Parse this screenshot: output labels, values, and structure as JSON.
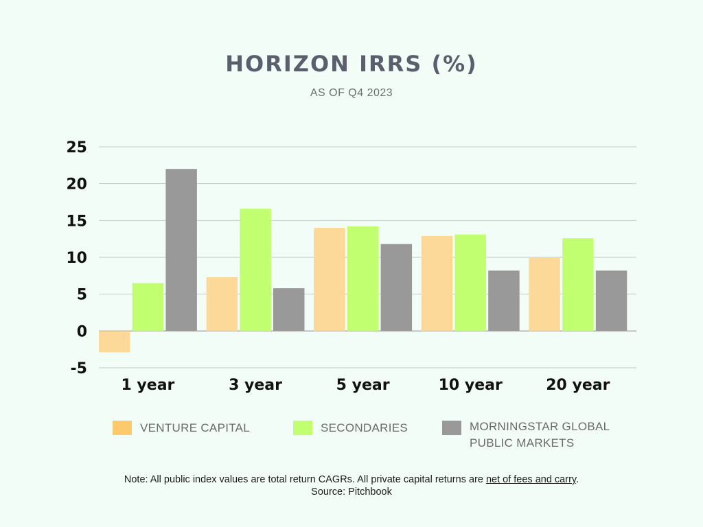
{
  "title": "HORIZON IRRS (%)",
  "subtitle": "AS OF Q4 2023",
  "chart_data": {
    "type": "bar",
    "categories": [
      "1 year",
      "3 year",
      "5 year",
      "10 year",
      "20 year"
    ],
    "series": [
      {
        "name": "VENTURE CAPITAL",
        "color": "#fdd999",
        "values": [
          -2.9,
          7.3,
          14.0,
          12.9,
          10.0
        ]
      },
      {
        "name": "SECONDARIES",
        "color": "#c2ff70",
        "values": [
          6.5,
          16.6,
          14.2,
          13.1,
          12.6
        ]
      },
      {
        "name": "MORNINGSTAR GLOBAL PUBLIC MARKETS",
        "color": "#999999",
        "values": [
          22.0,
          5.8,
          11.8,
          8.2,
          8.2
        ]
      }
    ],
    "ylim": [
      -5,
      25
    ],
    "yticks": [
      -5,
      0,
      5,
      10,
      15,
      20,
      25
    ],
    "ytick_labels": [
      "-5",
      "0",
      "5",
      "10",
      "15",
      "20",
      "25"
    ],
    "grid": true,
    "legend_position": "bottom"
  },
  "legend": [
    {
      "line1": "VENTURE CAPITAL",
      "line2": "",
      "color": "#fdc96a"
    },
    {
      "line1": "SECONDARIES",
      "line2": "",
      "color": "#c2ff70"
    },
    {
      "line1": "MORNINGSTAR GLOBAL",
      "line2": "PUBLIC MARKETS",
      "color": "#999999"
    }
  ],
  "note": {
    "prefix": "Note: All public index values are total return CAGRs. All private capital returns are ",
    "underlined": "net of fees and carry",
    "suffix": ".",
    "source": "Source: Pitchbook"
  }
}
